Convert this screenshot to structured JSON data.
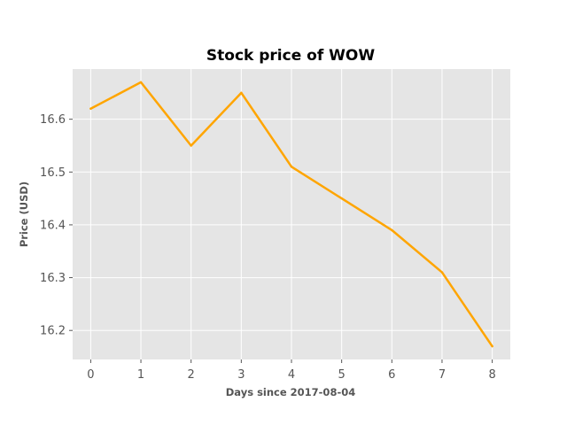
{
  "chart_data": {
    "type": "line",
    "title": "Stock price of WOW",
    "xlabel": "Days since 2017-08-04",
    "ylabel": "Price (USD)",
    "x": [
      0,
      1,
      2,
      3,
      4,
      5,
      6,
      7,
      8
    ],
    "xticks": [
      "0",
      "1",
      "2",
      "3",
      "4",
      "5",
      "6",
      "7",
      "8"
    ],
    "yticks": [
      "16.2",
      "16.3",
      "16.4",
      "16.5",
      "16.6"
    ],
    "series": [
      {
        "values": [
          16.62,
          16.67,
          16.55,
          16.65,
          16.51,
          16.45,
          16.39,
          16.31,
          16.17
        ]
      }
    ],
    "xlim": [
      -0.36,
      8.36
    ],
    "ylim": [
      16.145,
      16.695
    ],
    "grid": true,
    "line_color": "#FFA500",
    "plot_background": "#E5E5E5",
    "grid_color": "#FFFFFF"
  }
}
